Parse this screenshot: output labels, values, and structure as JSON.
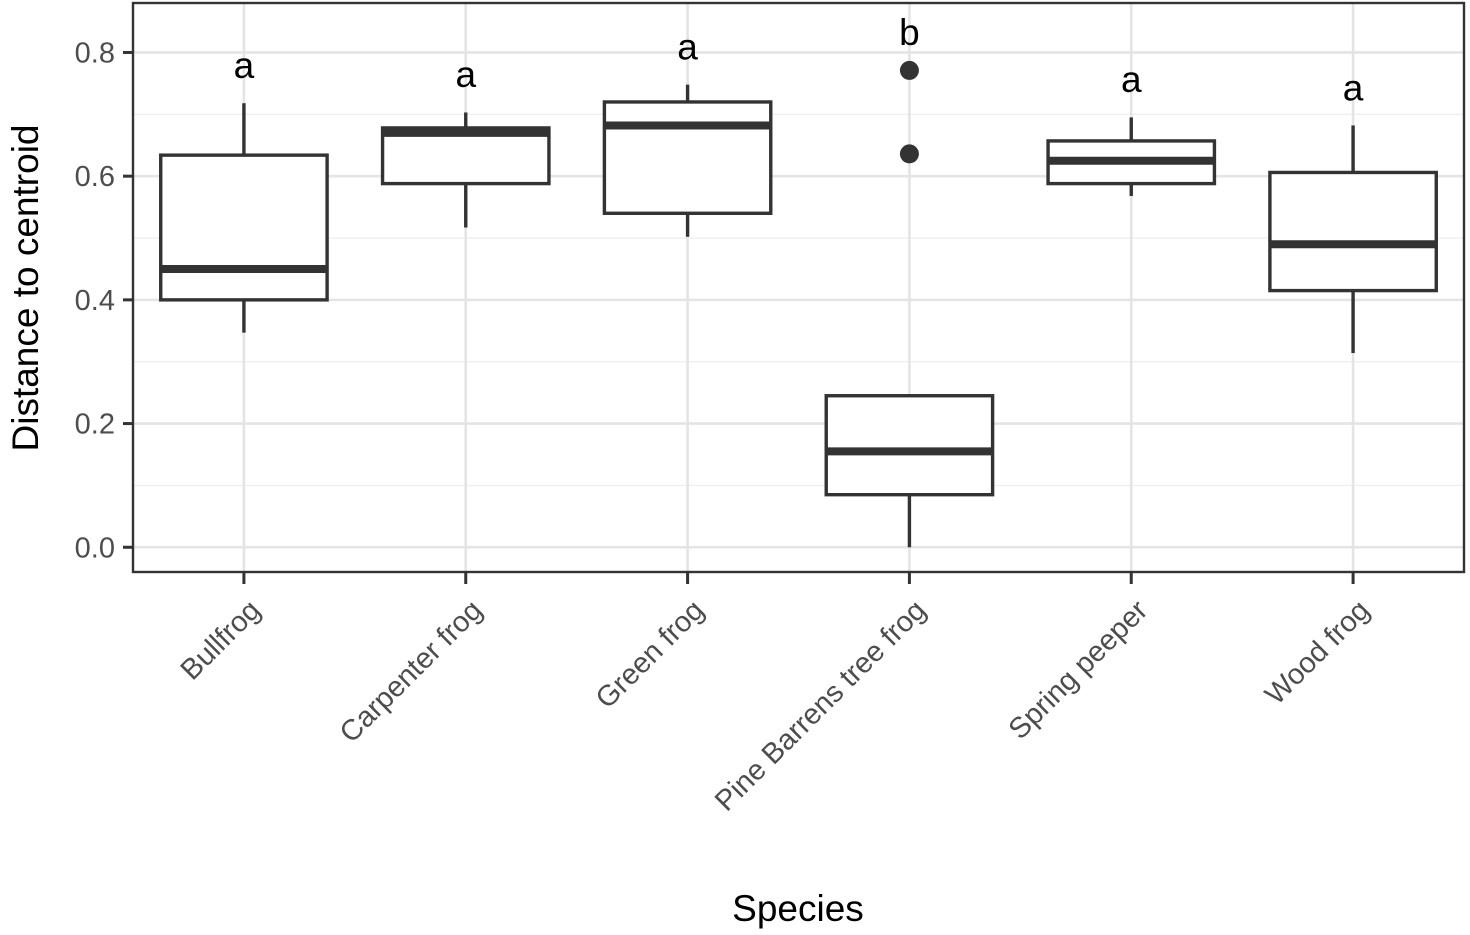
{
  "chart_data": {
    "type": "box",
    "xlabel": "Species",
    "ylabel": "Distance to centroid",
    "ylim": [
      -0.04,
      0.88
    ],
    "yticks": [
      "0.0",
      "0.2",
      "0.4",
      "0.6",
      "0.8"
    ],
    "ytick_values": [
      0.0,
      0.2,
      0.4,
      0.6,
      0.8
    ],
    "yminor_values": [
      0.1,
      0.3,
      0.5,
      0.7
    ],
    "categories": [
      "Bullfrog",
      "Carpenter frog",
      "Green frog",
      "Pine Barrens tree frog",
      "Spring peeper",
      "Wood frog"
    ],
    "boxes": [
      {
        "category": "Bullfrog",
        "lower_whisker": 0.347,
        "q1": 0.4,
        "median": 0.45,
        "q3": 0.634,
        "upper_whisker": 0.718,
        "outliers": [],
        "group": "a",
        "letter_y": 0.78
      },
      {
        "category": "Carpenter frog",
        "lower_whisker": 0.517,
        "q1": 0.588,
        "median": 0.67,
        "q3": 0.678,
        "upper_whisker": 0.703,
        "outliers": [],
        "group": "a",
        "letter_y": 0.765
      },
      {
        "category": "Green frog",
        "lower_whisker": 0.502,
        "q1": 0.54,
        "median": 0.682,
        "q3": 0.72,
        "upper_whisker": 0.748,
        "outliers": [],
        "group": "a",
        "letter_y": 0.81
      },
      {
        "category": "Pine Barrens tree frog",
        "lower_whisker": 0.0,
        "q1": 0.085,
        "median": 0.155,
        "q3": 0.245,
        "upper_whisker": 0.245,
        "outliers": [
          0.771,
          0.636
        ],
        "group": "b",
        "letter_y": 0.833
      },
      {
        "category": "Spring peeper",
        "lower_whisker": 0.568,
        "q1": 0.588,
        "median": 0.625,
        "q3": 0.657,
        "upper_whisker": 0.695,
        "outliers": [],
        "group": "a",
        "letter_y": 0.757
      },
      {
        "category": "Wood frog",
        "lower_whisker": 0.314,
        "q1": 0.415,
        "median": 0.49,
        "q3": 0.606,
        "upper_whisker": 0.682,
        "outliers": [],
        "group": "a",
        "letter_y": 0.743
      }
    ]
  }
}
